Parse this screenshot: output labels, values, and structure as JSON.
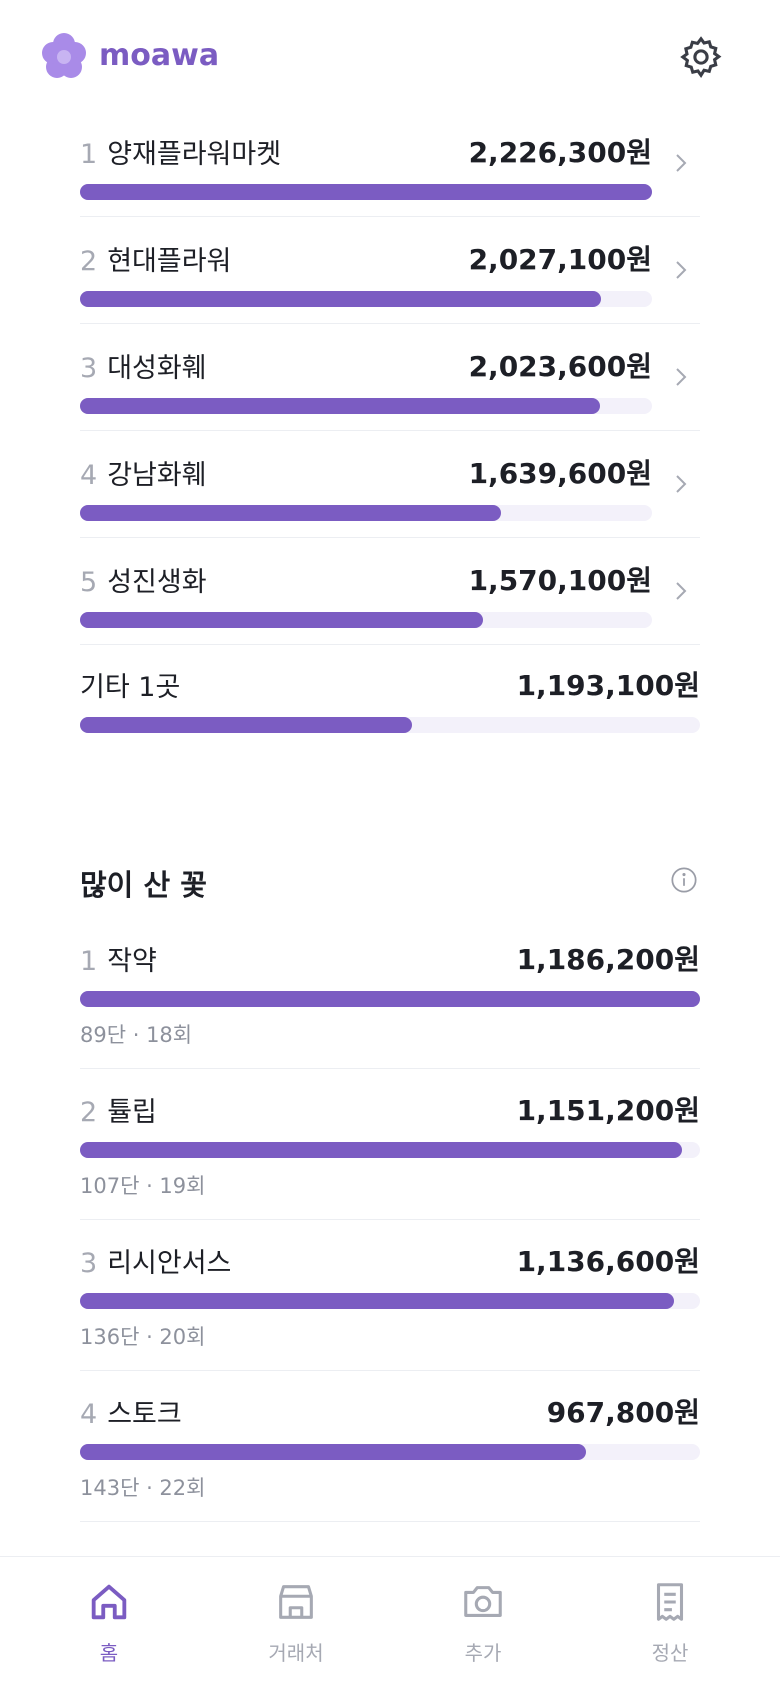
{
  "header": {
    "logo": "moawa"
  },
  "stores": {
    "rows": [
      {
        "rank": 1,
        "name": "양재플라워마켓",
        "amount": 2226300,
        "amount_label": "2,226,300원"
      },
      {
        "rank": 2,
        "name": "현대플라워",
        "amount": 2027100,
        "amount_label": "2,027,100원"
      },
      {
        "rank": 3,
        "name": "대성화훼",
        "amount": 2023600,
        "amount_label": "2,023,600원"
      },
      {
        "rank": 4,
        "name": "강남화훼",
        "amount": 1639600,
        "amount_label": "1,639,600원"
      },
      {
        "rank": 5,
        "name": "성진생화",
        "amount": 1570100,
        "amount_label": "1,570,100원"
      }
    ],
    "others": {
      "name": "기타 1곳",
      "amount": 1193100,
      "amount_label": "1,193,100원"
    }
  },
  "flowers": {
    "title": "많이 산 꽃",
    "rows": [
      {
        "rank": 1,
        "name": "작약",
        "amount": 1186200,
        "amount_label": "1,186,200원",
        "detail": "89단 · 18회"
      },
      {
        "rank": 2,
        "name": "튤립",
        "amount": 1151200,
        "amount_label": "1,151,200원",
        "detail": "107단 · 19회"
      },
      {
        "rank": 3,
        "name": "리시안서스",
        "amount": 1136600,
        "amount_label": "1,136,600원",
        "detail": "136단 · 20회"
      },
      {
        "rank": 4,
        "name": "스토크",
        "amount": 967800,
        "amount_label": "967,800원",
        "detail": "143단 · 22회"
      }
    ]
  },
  "nav": {
    "tabs": [
      {
        "label": "홈",
        "active": true
      },
      {
        "label": "거래처",
        "active": false
      },
      {
        "label": "추가",
        "active": false
      },
      {
        "label": "정산",
        "active": false
      }
    ]
  }
}
